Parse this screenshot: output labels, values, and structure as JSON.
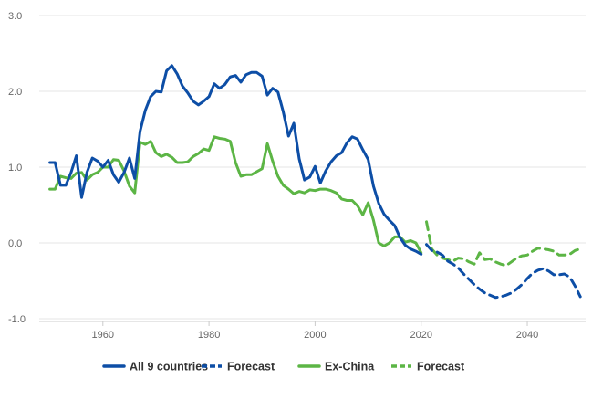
{
  "chart_data": {
    "type": "line",
    "title": "",
    "xlabel": "",
    "ylabel": "",
    "xlim": [
      1948,
      2051
    ],
    "ylim": [
      -1.0,
      3.0
    ],
    "x_ticks": [
      1960,
      1980,
      2000,
      2020,
      2040
    ],
    "y_ticks": [
      3.0,
      2.0,
      1.0,
      0.0,
      -1.0
    ],
    "y_tick_labels": [
      "3.0",
      "2.0",
      "1.0",
      "0.0",
      "-1.0"
    ],
    "grid": "horizontal",
    "legend_position": "bottom-center",
    "colors": {
      "blue": "#0d4ea6",
      "green": "#5cb545",
      "grid": "#e6e6e6",
      "text": "#333333"
    },
    "series": [
      {
        "name": "All 9 countries",
        "style": "solid",
        "color": "#0d4ea6",
        "points": [
          [
            1950,
            1.06
          ],
          [
            1951,
            1.06
          ],
          [
            1952,
            0.76
          ],
          [
            1953,
            0.76
          ],
          [
            1954,
            0.93
          ],
          [
            1955,
            1.15
          ],
          [
            1956,
            0.6
          ],
          [
            1957,
            0.93
          ],
          [
            1958,
            1.12
          ],
          [
            1959,
            1.08
          ],
          [
            1960,
            1.0
          ],
          [
            1961,
            1.09
          ],
          [
            1962,
            0.9
          ],
          [
            1963,
            0.8
          ],
          [
            1964,
            0.93
          ],
          [
            1965,
            1.12
          ],
          [
            1966,
            0.85
          ],
          [
            1967,
            1.47
          ],
          [
            1968,
            1.75
          ],
          [
            1969,
            1.93
          ],
          [
            1970,
            2.0
          ],
          [
            1971,
            1.99
          ],
          [
            1972,
            2.27
          ],
          [
            1973,
            2.34
          ],
          [
            1974,
            2.23
          ],
          [
            1975,
            2.07
          ],
          [
            1976,
            1.98
          ],
          [
            1977,
            1.87
          ],
          [
            1978,
            1.82
          ],
          [
            1979,
            1.87
          ],
          [
            1980,
            1.93
          ],
          [
            1981,
            2.1
          ],
          [
            1982,
            2.04
          ],
          [
            1983,
            2.09
          ],
          [
            1984,
            2.19
          ],
          [
            1985,
            2.21
          ],
          [
            1986,
            2.12
          ],
          [
            1987,
            2.22
          ],
          [
            1988,
            2.25
          ],
          [
            1989,
            2.25
          ],
          [
            1990,
            2.2
          ],
          [
            1991,
            1.95
          ],
          [
            1992,
            2.04
          ],
          [
            1993,
            1.99
          ],
          [
            1994,
            1.73
          ],
          [
            1995,
            1.41
          ],
          [
            1996,
            1.58
          ],
          [
            1997,
            1.11
          ],
          [
            1998,
            0.83
          ],
          [
            1999,
            0.87
          ],
          [
            2000,
            1.01
          ],
          [
            2001,
            0.79
          ],
          [
            2002,
            0.95
          ],
          [
            2003,
            1.07
          ],
          [
            2004,
            1.15
          ],
          [
            2005,
            1.19
          ],
          [
            2006,
            1.32
          ],
          [
            2007,
            1.4
          ],
          [
            2008,
            1.37
          ],
          [
            2009,
            1.23
          ],
          [
            2010,
            1.1
          ],
          [
            2011,
            0.75
          ],
          [
            2012,
            0.52
          ],
          [
            2013,
            0.38
          ],
          [
            2014,
            0.3
          ],
          [
            2015,
            0.23
          ],
          [
            2016,
            0.07
          ],
          [
            2017,
            -0.03
          ],
          [
            2018,
            -0.08
          ],
          [
            2019,
            -0.11
          ],
          [
            2020,
            -0.15
          ]
        ]
      },
      {
        "name": "Forecast",
        "style": "dashed",
        "color": "#0d4ea6",
        "points": [
          [
            2021,
            -0.02
          ],
          [
            2022,
            -0.1
          ],
          [
            2023,
            -0.12
          ],
          [
            2024,
            -0.16
          ],
          [
            2025,
            -0.24
          ],
          [
            2026,
            -0.28
          ],
          [
            2027,
            -0.33
          ],
          [
            2028,
            -0.41
          ],
          [
            2029,
            -0.48
          ],
          [
            2030,
            -0.55
          ],
          [
            2031,
            -0.61
          ],
          [
            2032,
            -0.66
          ],
          [
            2033,
            -0.69
          ],
          [
            2034,
            -0.72
          ],
          [
            2035,
            -0.71
          ],
          [
            2036,
            -0.69
          ],
          [
            2037,
            -0.66
          ],
          [
            2038,
            -0.61
          ],
          [
            2039,
            -0.55
          ],
          [
            2040,
            -0.47
          ],
          [
            2041,
            -0.4
          ],
          [
            2042,
            -0.36
          ],
          [
            2043,
            -0.34
          ],
          [
            2044,
            -0.37
          ],
          [
            2045,
            -0.42
          ],
          [
            2046,
            -0.42
          ],
          [
            2047,
            -0.41
          ],
          [
            2048,
            -0.45
          ],
          [
            2049,
            -0.57
          ],
          [
            2050,
            -0.71
          ]
        ]
      },
      {
        "name": "Ex-China",
        "style": "solid",
        "color": "#5cb545",
        "points": [
          [
            1950,
            0.71
          ],
          [
            1951,
            0.71
          ],
          [
            1952,
            0.88
          ],
          [
            1953,
            0.86
          ],
          [
            1954,
            0.85
          ],
          [
            1955,
            0.92
          ],
          [
            1956,
            0.93
          ],
          [
            1957,
            0.83
          ],
          [
            1958,
            0.9
          ],
          [
            1959,
            0.93
          ],
          [
            1960,
            1.0
          ],
          [
            1961,
            1.0
          ],
          [
            1962,
            1.1
          ],
          [
            1963,
            1.09
          ],
          [
            1964,
            0.95
          ],
          [
            1965,
            0.75
          ],
          [
            1966,
            0.66
          ],
          [
            1967,
            1.33
          ],
          [
            1968,
            1.3
          ],
          [
            1969,
            1.34
          ],
          [
            1970,
            1.19
          ],
          [
            1971,
            1.14
          ],
          [
            1972,
            1.17
          ],
          [
            1973,
            1.13
          ],
          [
            1974,
            1.06
          ],
          [
            1975,
            1.06
          ],
          [
            1976,
            1.07
          ],
          [
            1977,
            1.14
          ],
          [
            1978,
            1.18
          ],
          [
            1979,
            1.24
          ],
          [
            1980,
            1.22
          ],
          [
            1981,
            1.4
          ],
          [
            1982,
            1.38
          ],
          [
            1983,
            1.37
          ],
          [
            1984,
            1.34
          ],
          [
            1985,
            1.06
          ],
          [
            1986,
            0.88
          ],
          [
            1987,
            0.9
          ],
          [
            1988,
            0.9
          ],
          [
            1989,
            0.94
          ],
          [
            1990,
            0.98
          ],
          [
            1991,
            1.31
          ],
          [
            1992,
            1.08
          ],
          [
            1993,
            0.88
          ],
          [
            1994,
            0.76
          ],
          [
            1995,
            0.71
          ],
          [
            1996,
            0.65
          ],
          [
            1997,
            0.68
          ],
          [
            1998,
            0.66
          ],
          [
            1999,
            0.7
          ],
          [
            2000,
            0.69
          ],
          [
            2001,
            0.71
          ],
          [
            2002,
            0.71
          ],
          [
            2003,
            0.69
          ],
          [
            2004,
            0.66
          ],
          [
            2005,
            0.58
          ],
          [
            2006,
            0.56
          ],
          [
            2007,
            0.56
          ],
          [
            2008,
            0.49
          ],
          [
            2009,
            0.37
          ],
          [
            2010,
            0.53
          ],
          [
            2011,
            0.3
          ],
          [
            2012,
            0.0
          ],
          [
            2013,
            -0.04
          ],
          [
            2014,
            0.0
          ],
          [
            2015,
            0.08
          ],
          [
            2016,
            0.08
          ],
          [
            2017,
            0.01
          ],
          [
            2018,
            0.03
          ],
          [
            2019,
            0.0
          ],
          [
            2020,
            -0.13
          ]
        ]
      },
      {
        "name": "Forecast",
        "style": "dashed",
        "color": "#5cb545",
        "points": [
          [
            2021,
            0.28
          ],
          [
            2022,
            -0.08
          ],
          [
            2023,
            -0.16
          ],
          [
            2024,
            -0.2
          ],
          [
            2025,
            -0.22
          ],
          [
            2026,
            -0.24
          ],
          [
            2027,
            -0.2
          ],
          [
            2028,
            -0.21
          ],
          [
            2029,
            -0.25
          ],
          [
            2030,
            -0.28
          ],
          [
            2031,
            -0.13
          ],
          [
            2032,
            -0.22
          ],
          [
            2033,
            -0.21
          ],
          [
            2034,
            -0.25
          ],
          [
            2035,
            -0.28
          ],
          [
            2036,
            -0.3
          ],
          [
            2037,
            -0.25
          ],
          [
            2038,
            -0.2
          ],
          [
            2039,
            -0.17
          ],
          [
            2040,
            -0.16
          ],
          [
            2041,
            -0.11
          ],
          [
            2042,
            -0.07
          ],
          [
            2043,
            -0.08
          ],
          [
            2044,
            -0.09
          ],
          [
            2045,
            -0.11
          ],
          [
            2046,
            -0.16
          ],
          [
            2047,
            -0.16
          ],
          [
            2048,
            -0.15
          ],
          [
            2049,
            -0.1
          ],
          [
            2050,
            -0.08
          ]
        ]
      }
    ]
  }
}
